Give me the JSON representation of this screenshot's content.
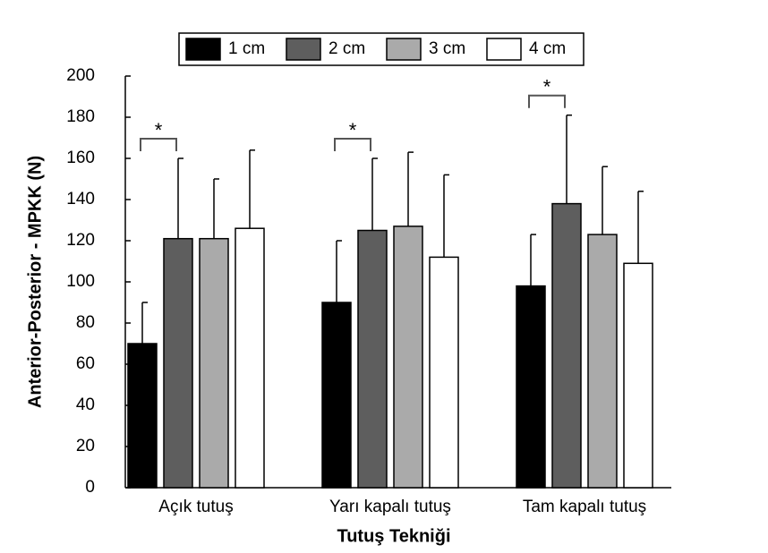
{
  "chart_data": {
    "type": "bar",
    "y_label": "Anterior-Posterior - MPKK (N)",
    "x_label": "Tutuş Tekniği",
    "categories": [
      "Açık tutuş",
      "Yarı kapalı tutuş",
      "Tam kapalı tutuş"
    ],
    "series": [
      {
        "name": "1 cm",
        "color": "#000000",
        "values": [
          70,
          90,
          98
        ],
        "errors": [
          20,
          30,
          25
        ]
      },
      {
        "name": "2 cm",
        "color": "#5e5e5e",
        "values": [
          121,
          125,
          138
        ],
        "errors": [
          39,
          35,
          43
        ]
      },
      {
        "name": "3 cm",
        "color": "#aaaaaa",
        "values": [
          121,
          127,
          123
        ],
        "errors": [
          29,
          36,
          33
        ]
      },
      {
        "name": "4 cm",
        "color": "#ffffff",
        "values": [
          126,
          112,
          109
        ],
        "errors": [
          38,
          40,
          35
        ]
      }
    ],
    "significance": [
      {
        "label": "*",
        "category": 0,
        "series": [
          0,
          1
        ]
      },
      {
        "label": "*",
        "category": 1,
        "series": [
          0,
          1
        ]
      },
      {
        "label": "*",
        "category": 2,
        "series": [
          0,
          1
        ]
      }
    ],
    "ylim": [
      0,
      200
    ],
    "yticks": [
      0,
      20,
      40,
      60,
      80,
      100,
      120,
      140,
      160,
      180,
      200
    ],
    "legend": "top"
  }
}
